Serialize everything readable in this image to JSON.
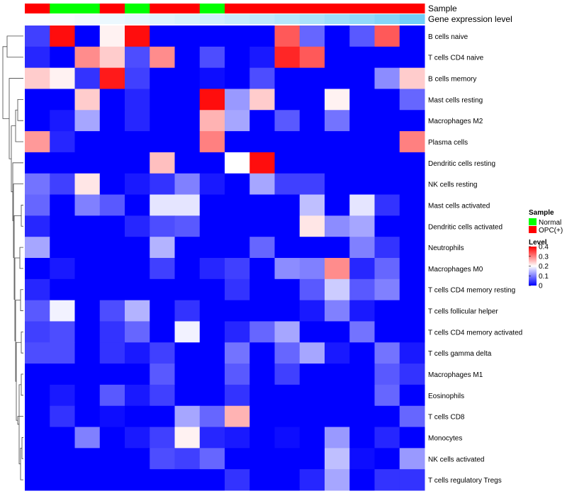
{
  "chart_data": {
    "type": "heatmap",
    "title": "",
    "annotation_labels": {
      "sample": "Sample",
      "expression": "Gene expression level"
    },
    "columns": 16,
    "sample_annotation": [
      "OPC(+)",
      "Normal",
      "Normal",
      "OPC(+)",
      "Normal",
      "OPC(+)",
      "OPC(+)",
      "Normal",
      "OPC(+)",
      "OPC(+)",
      "OPC(+)",
      "OPC(+)",
      "OPC(+)",
      "OPC(+)",
      "OPC(+)",
      "OPC(+)"
    ],
    "expression_annotation": [
      0.02,
      0.05,
      0.08,
      0.11,
      0.14,
      0.18,
      0.22,
      0.26,
      0.31,
      0.36,
      0.42,
      0.48,
      0.55,
      0.62,
      0.7,
      0.8
    ],
    "rows": [
      "B cells naive",
      "T cells CD4 naive",
      "B cells memory",
      "Mast cells resting",
      "Macrophages M2",
      "Plasma cells",
      "Dendritic cells resting",
      "NK cells resting",
      "Mast cells activated",
      "Dendritic cells activated",
      "Neutrophils",
      "Macrophages M0",
      "T cells CD4 memory resting",
      "T cells follicular helper",
      "T cells CD4 memory activated",
      "T cells gamma delta",
      "Macrophages M1",
      "Eosinophils",
      "T cells CD8",
      "Monocytes",
      "NK cells activated",
      "T cells regulatory  Tregs"
    ],
    "values": [
      [
        0.05,
        0.39,
        0.0,
        0.21,
        0.39,
        0.0,
        0.0,
        0.0,
        0.0,
        0.0,
        0.33,
        0.08,
        0.0,
        0.07,
        0.33,
        0.0
      ],
      [
        0.03,
        0.0,
        0.29,
        0.24,
        0.06,
        0.29,
        0.0,
        0.06,
        0.0,
        0.02,
        0.37,
        0.33,
        0.0,
        0.0,
        0.0,
        0.0
      ],
      [
        0.24,
        0.21,
        0.04,
        0.38,
        0.05,
        0.0,
        0.0,
        0.01,
        0.0,
        0.06,
        0.0,
        0.0,
        0.0,
        0.0,
        0.11,
        0.24
      ],
      [
        0.0,
        0.0,
        0.24,
        0.0,
        0.03,
        0.0,
        0.0,
        0.39,
        0.12,
        0.24,
        0.0,
        0.0,
        0.21,
        0.0,
        0.0,
        0.08
      ],
      [
        0.0,
        0.02,
        0.13,
        0.0,
        0.03,
        0.0,
        0.0,
        0.26,
        0.13,
        0.0,
        0.07,
        0.0,
        0.09,
        0.0,
        0.0,
        0.0
      ],
      [
        0.28,
        0.03,
        0.0,
        0.0,
        0.0,
        0.0,
        0.0,
        0.3,
        0.0,
        0.0,
        0.0,
        0.0,
        0.0,
        0.0,
        0.0,
        0.3
      ],
      [
        0.0,
        0.0,
        0.0,
        0.0,
        0.0,
        0.25,
        0.0,
        0.0,
        0.2,
        0.39,
        0.0,
        0.0,
        0.0,
        0.0,
        0.0,
        0.0
      ],
      [
        0.09,
        0.05,
        0.22,
        0.0,
        0.02,
        0.04,
        0.1,
        0.02,
        0.0,
        0.13,
        0.05,
        0.05,
        0.0,
        0.0,
        0.0,
        0.0
      ],
      [
        0.08,
        0.0,
        0.1,
        0.07,
        0.0,
        0.18,
        0.18,
        0.0,
        0.0,
        0.0,
        0.0,
        0.15,
        0.0,
        0.18,
        0.04,
        0.0
      ],
      [
        0.03,
        0.0,
        0.0,
        0.0,
        0.03,
        0.06,
        0.07,
        0.0,
        0.0,
        0.0,
        0.0,
        0.22,
        0.11,
        0.13,
        0.0,
        0.0
      ],
      [
        0.13,
        0.0,
        0.0,
        0.0,
        0.0,
        0.14,
        0.0,
        0.0,
        0.0,
        0.08,
        0.0,
        0.0,
        0.0,
        0.1,
        0.04,
        0.0
      ],
      [
        0.0,
        0.02,
        0.0,
        0.0,
        0.0,
        0.05,
        0.0,
        0.03,
        0.05,
        0.0,
        0.11,
        0.1,
        0.29,
        0.03,
        0.08,
        0.0
      ],
      [
        0.03,
        0.0,
        0.0,
        0.0,
        0.0,
        0.0,
        0.0,
        0.0,
        0.04,
        0.0,
        0.0,
        0.07,
        0.16,
        0.07,
        0.1,
        0.0
      ],
      [
        0.07,
        0.19,
        0.0,
        0.06,
        0.14,
        0.0,
        0.04,
        0.0,
        0.0,
        0.0,
        0.0,
        0.02,
        0.1,
        0.02,
        0.0,
        0.0
      ],
      [
        0.05,
        0.06,
        0.0,
        0.04,
        0.08,
        0.0,
        0.19,
        0.0,
        0.03,
        0.08,
        0.13,
        0.0,
        0.0,
        0.09,
        0.0,
        0.0
      ],
      [
        0.06,
        0.06,
        0.0,
        0.04,
        0.02,
        0.05,
        0.0,
        0.0,
        0.09,
        0.0,
        0.08,
        0.13,
        0.02,
        0.0,
        0.09,
        0.02
      ],
      [
        0.0,
        0.0,
        0.0,
        0.0,
        0.0,
        0.07,
        0.0,
        0.0,
        0.07,
        0.0,
        0.05,
        0.0,
        0.0,
        0.0,
        0.07,
        0.04
      ],
      [
        0.0,
        0.02,
        0.0,
        0.07,
        0.02,
        0.05,
        0.0,
        0.0,
        0.04,
        0.0,
        0.0,
        0.0,
        0.0,
        0.0,
        0.08,
        0.0
      ],
      [
        0.0,
        0.04,
        0.0,
        0.01,
        0.0,
        0.0,
        0.13,
        0.08,
        0.26,
        0.0,
        0.0,
        0.0,
        0.0,
        0.0,
        0.0,
        0.08
      ],
      [
        0.0,
        0.0,
        0.1,
        0.0,
        0.02,
        0.05,
        0.21,
        0.03,
        0.02,
        0.0,
        0.01,
        0.0,
        0.12,
        0.0,
        0.03,
        0.0
      ],
      [
        0.0,
        0.0,
        0.0,
        0.0,
        0.0,
        0.06,
        0.05,
        0.08,
        0.0,
        0.0,
        0.0,
        0.0,
        0.15,
        0.01,
        0.0,
        0.12
      ],
      [
        0.0,
        0.0,
        0.0,
        0.0,
        0.0,
        0.0,
        0.0,
        0.0,
        0.04,
        0.0,
        0.0,
        0.03,
        0.13,
        0.0,
        0.04,
        0.04
      ]
    ],
    "legend": {
      "sample_title": "Sample",
      "sample_entries": [
        {
          "label": "Normal",
          "color": "#00ff00"
        },
        {
          "label": "OPC(+)",
          "color": "#ff0000"
        }
      ],
      "level_title": "Level",
      "level_ticks": [
        0.4,
        0.3,
        0.2,
        0.1,
        0
      ],
      "level_tick_labels": [
        "0.4",
        "0.3",
        "0.2",
        "0.1",
        "0"
      ]
    },
    "color_scale": {
      "low": "#0000ff",
      "mid": "#ffffff",
      "high": "#ff0000",
      "min": 0,
      "mid_value": 0.2,
      "max": 0.4
    },
    "expression_colors": {
      "low": "#ffffff",
      "high": "#4fc3f7"
    }
  }
}
